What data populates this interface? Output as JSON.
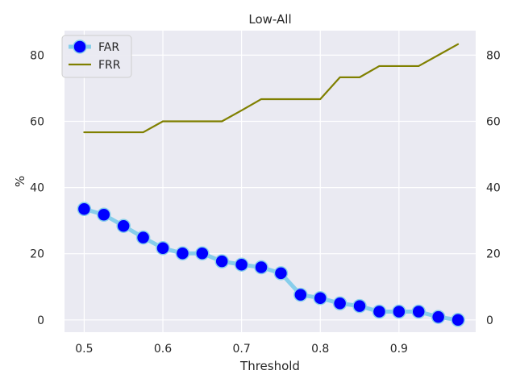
{
  "chart_data": {
    "type": "line",
    "title": "Low-All",
    "xlabel": "Threshold",
    "ylabel": "%",
    "xlim": [
      0.475,
      0.9975
    ],
    "ylim": [
      -3.7,
      87.4
    ],
    "xticks": [
      0.5,
      0.6,
      0.7,
      0.8,
      0.9
    ],
    "xtick_labels": [
      "0.5",
      "0.6",
      "0.7",
      "0.8",
      "0.9"
    ],
    "yticks": [
      0,
      20,
      40,
      60,
      80
    ],
    "ytick_labels": [
      "0",
      "20",
      "40",
      "60",
      "80"
    ],
    "grid": true,
    "secondary_y_axis_mirrored": true,
    "legend_position": "top-left",
    "x": [
      0.5,
      0.525,
      0.55,
      0.575,
      0.6,
      0.625,
      0.65,
      0.675,
      0.7,
      0.725,
      0.75,
      0.775,
      0.8,
      0.825,
      0.85,
      0.875,
      0.9,
      0.925,
      0.95,
      0.975
    ],
    "series": [
      {
        "name": "FAR",
        "line_color": "#87ceeb",
        "marker_color": "#0000ff",
        "marker": "circle",
        "values": [
          33.5,
          31.8,
          28.4,
          24.9,
          21.7,
          20.1,
          20.1,
          17.7,
          16.7,
          15.9,
          14.1,
          7.6,
          6.6,
          5.0,
          4.2,
          2.5,
          2.5,
          2.5,
          0.9,
          0.0
        ]
      },
      {
        "name": "FRR",
        "line_color": "#808000",
        "marker": "none",
        "values": [
          56.7,
          56.7,
          56.7,
          56.7,
          60.0,
          60.0,
          60.0,
          60.0,
          63.3,
          66.7,
          66.7,
          66.7,
          66.7,
          73.3,
          73.3,
          76.7,
          76.7,
          76.7,
          80.0,
          83.3
        ]
      }
    ],
    "colors": {
      "plot_background": "#eaeaf2",
      "grid": "#ffffff",
      "text": "#262626"
    }
  }
}
